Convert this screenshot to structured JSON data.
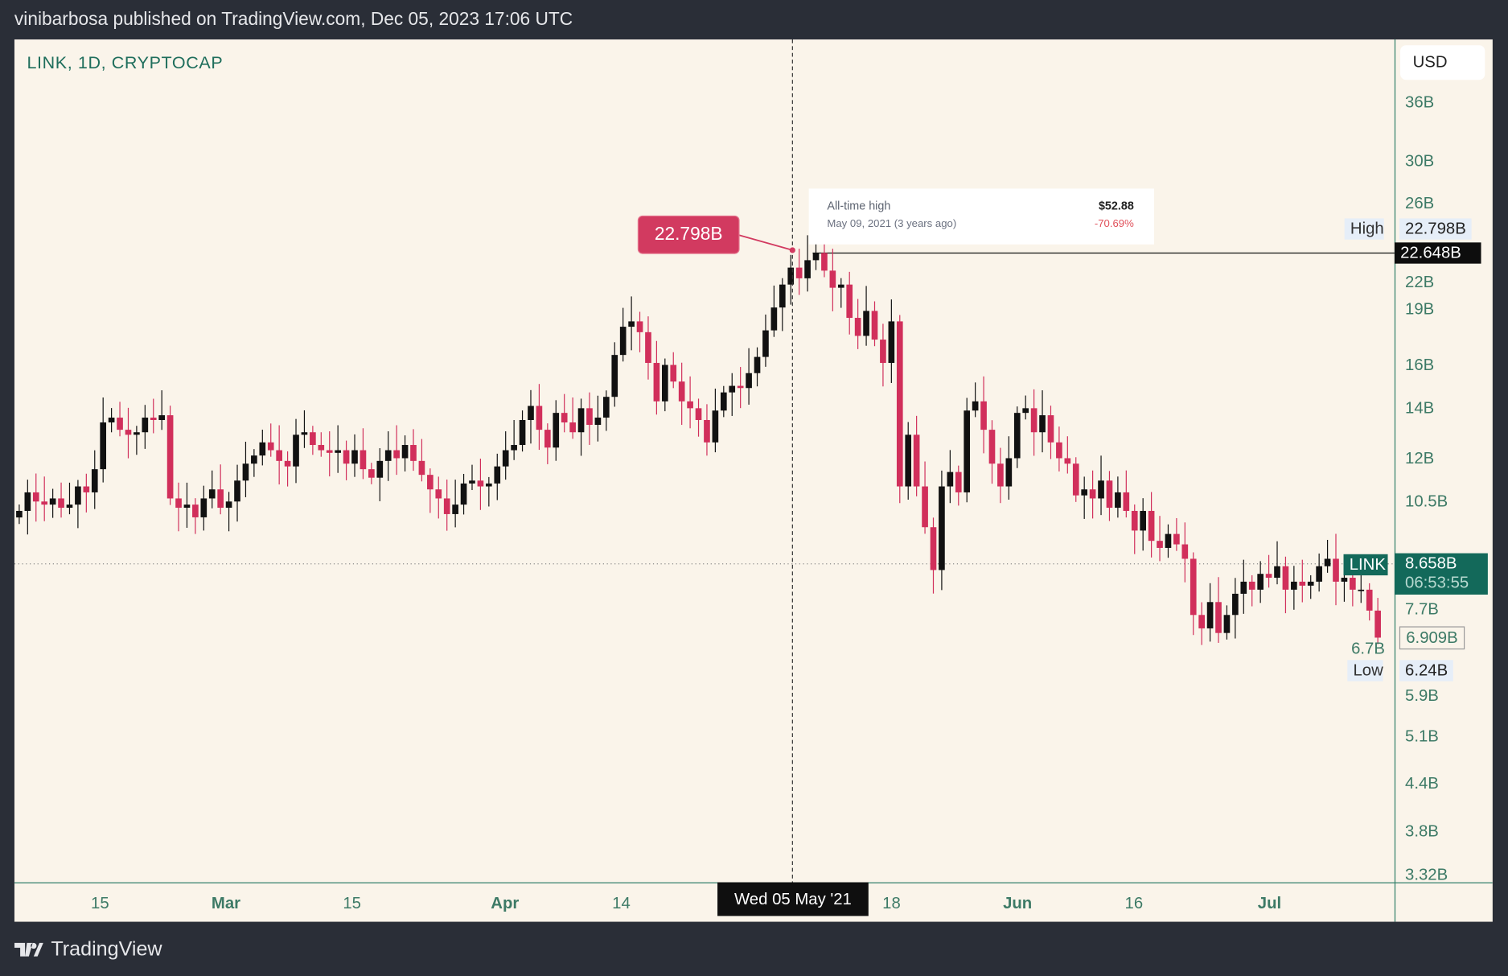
{
  "header": {
    "title": "vinibarbosa published on TradingView.com, Dec 05, 2023 17:06 UTC"
  },
  "chart": {
    "symbol": "LINK, 1D, CRYPTOCAP",
    "currency": "USD"
  },
  "footer": {
    "brand": "TradingView"
  },
  "colors": {
    "up": "#111111",
    "down": "#d12f5b",
    "background": "#faf4ea",
    "axis_text": "#3d7a66",
    "last_price": "#13695a"
  },
  "chart_data": {
    "type": "candlestick",
    "y_scale": "log",
    "ylim": [
      3.32,
      36
    ],
    "y_unit": "B",
    "y_ticks": [
      "36B",
      "30B",
      "26B",
      "22B",
      "19B",
      "16B",
      "14B",
      "12B",
      "10.5B",
      "7.7B",
      "6.7B",
      "5.9B",
      "5.1B",
      "4.4B",
      "3.8B",
      "3.32B"
    ],
    "y_tick_values": [
      36,
      30,
      26,
      22,
      19,
      16,
      14,
      12,
      10.5,
      7.7,
      6.7,
      5.9,
      5.1,
      4.4,
      3.8,
      3.32
    ],
    "x_ticks": [
      {
        "label": "15",
        "bold": false
      },
      {
        "label": "Mar",
        "bold": true
      },
      {
        "label": "15",
        "bold": false
      },
      {
        "label": "Apr",
        "bold": true
      },
      {
        "label": "14",
        "bold": false
      },
      {
        "label": "18",
        "bold": false
      },
      {
        "label": "Jun",
        "bold": true
      },
      {
        "label": "16",
        "bold": false
      },
      {
        "label": "Jul",
        "bold": true
      }
    ],
    "first_date": "2021-02-02",
    "closes": [
      10.2,
      10.8,
      10.5,
      10.4,
      10.6,
      10.3,
      10.4,
      11.0,
      10.8,
      11.6,
      13.4,
      13.6,
      13.1,
      12.9,
      13.0,
      13.6,
      13.5,
      13.7,
      10.6,
      10.3,
      10.4,
      10.0,
      10.6,
      10.9,
      10.3,
      10.5,
      11.2,
      11.8,
      12.1,
      12.6,
      12.3,
      11.9,
      11.7,
      12.9,
      13.0,
      12.5,
      12.3,
      12.2,
      12.3,
      11.8,
      12.3,
      11.6,
      11.3,
      11.9,
      12.3,
      12.0,
      12.5,
      11.9,
      11.4,
      10.9,
      10.6,
      10.1,
      10.4,
      11.1,
      11.2,
      11.0,
      11.1,
      11.7,
      12.3,
      12.5,
      13.5,
      14.1,
      13.1,
      12.4,
      13.8,
      13.4,
      13.0,
      14.0,
      13.3,
      13.6,
      14.5,
      16.5,
      18.0,
      18.3,
      17.7,
      16.1,
      14.3,
      16.0,
      15.2,
      14.3,
      14.0,
      13.5,
      12.6,
      13.9,
      14.7,
      15.0,
      14.9,
      15.6,
      16.4,
      17.8,
      19.1,
      20.5,
      21.6,
      20.9,
      22.1,
      22.6,
      21.4,
      20.3,
      20.5,
      18.5,
      17.5,
      18.9,
      17.3,
      16.1,
      18.3,
      11.0,
      12.9,
      11.0,
      9.7,
      8.5,
      11.0,
      11.5,
      10.8,
      13.9,
      14.3,
      13.1,
      11.8,
      11.0,
      12.0,
      13.8,
      14.0,
      13.0,
      13.7,
      12.6,
      12.0,
      11.8,
      10.7,
      10.9,
      10.6,
      11.2,
      10.3,
      10.8,
      10.2,
      9.6,
      10.2,
      9.3,
      9.1,
      9.5,
      9.2,
      8.8,
      7.4,
      7.1,
      7.7,
      7.0,
      7.4,
      7.9,
      8.2,
      8.0,
      8.4,
      8.3,
      8.6,
      8.0,
      8.2,
      8.1,
      8.2,
      8.6,
      8.8,
      8.2,
      8.3,
      8.0,
      8.0,
      7.5,
      6.9
    ],
    "high": {
      "label": "High",
      "value": "22.798B"
    },
    "low": {
      "label": "Low",
      "value": "6.24B"
    },
    "crosshair_price": "22.648B",
    "crosshair_date": "Wed 05 May '21",
    "last": {
      "symbol": "LINK",
      "value": "8.658B",
      "countdown": "06:53:55"
    },
    "prev_close_label": "6.909B",
    "callout": "22.798B",
    "ath_box": {
      "title": "All-time high",
      "price": "$52.88",
      "date": "May 09, 2021 (3 years ago)",
      "change": "-70.69%"
    }
  }
}
